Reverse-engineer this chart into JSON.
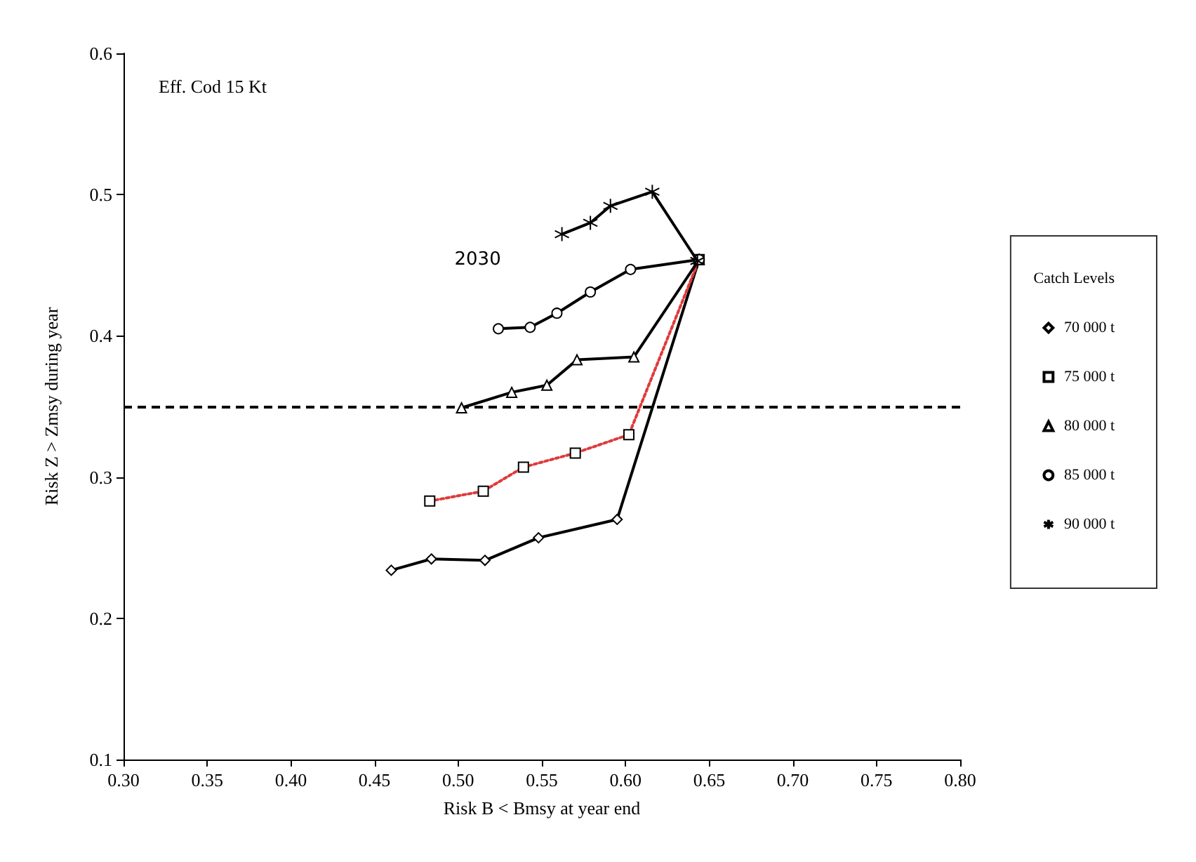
{
  "chart_data": {
    "type": "line",
    "title": "Eff. Cod 15 Kt",
    "xlabel": "Risk B < Bmsy at year end",
    "ylabel": "Risk Z > Zmsy during year",
    "legend_title": "Catch Levels",
    "annotations": [
      "2030"
    ],
    "series": [
      {
        "name": "70 000 t",
        "color": "#000000",
        "marker": "diamond",
        "x": [
          0.46,
          0.484,
          0.516,
          0.548,
          0.595,
          0.644
        ],
        "values": [
          0.234,
          0.242,
          0.241,
          0.257,
          0.27,
          0.454
        ]
      },
      {
        "name": "75 000 t",
        "color": "#e03a3a",
        "marker": "square",
        "line_style": "dotted",
        "x": [
          0.483,
          0.515,
          0.539,
          0.57,
          0.602,
          0.644
        ],
        "values": [
          0.283,
          0.29,
          0.307,
          0.317,
          0.33,
          0.454
        ]
      },
      {
        "name": "80 000 t",
        "color": "#000000",
        "marker": "triangle",
        "x": [
          0.502,
          0.532,
          0.553,
          0.571,
          0.605,
          0.644
        ],
        "values": [
          0.349,
          0.36,
          0.365,
          0.383,
          0.385,
          0.454
        ]
      },
      {
        "name": "85 000 t",
        "color": "#000000",
        "marker": "circle",
        "x": [
          0.524,
          0.543,
          0.559,
          0.579,
          0.603,
          0.644
        ],
        "values": [
          0.405,
          0.406,
          0.416,
          0.431,
          0.447,
          0.454
        ]
      },
      {
        "name": "90 000 t",
        "color": "#000000",
        "marker": "cross",
        "x": [
          0.562,
          0.579,
          0.591,
          0.616,
          0.643
        ],
        "values": [
          0.472,
          0.48,
          0.492,
          0.502,
          0.453
        ]
      }
    ],
    "xlim": [
      0.3,
      0.8
    ],
    "xticks": [
      {
        "value": 0.3,
        "label": "0.30"
      },
      {
        "value": 0.35,
        "label": "0.35"
      },
      {
        "value": 0.4,
        "label": "0.40"
      },
      {
        "value": 0.45,
        "label": "0.45"
      },
      {
        "value": 0.5,
        "label": "0.50"
      },
      {
        "value": 0.55,
        "label": "0.55"
      },
      {
        "value": 0.6,
        "label": "0.60"
      },
      {
        "value": 0.65,
        "label": "0.65"
      },
      {
        "value": 0.7,
        "label": "0.70"
      },
      {
        "value": 0.75,
        "label": "0.75"
      },
      {
        "value": 0.8,
        "label": "0.80"
      }
    ],
    "ylim": [
      0.1,
      0.6
    ],
    "yticks": [
      0.1,
      0.2,
      0.3,
      0.4,
      0.5,
      0.6
    ],
    "ref_lines": [
      {
        "axis": "y",
        "value": 0.35,
        "color": "#000000",
        "line_style": "dashed"
      }
    ],
    "legend": "right",
    "grid": false
  }
}
